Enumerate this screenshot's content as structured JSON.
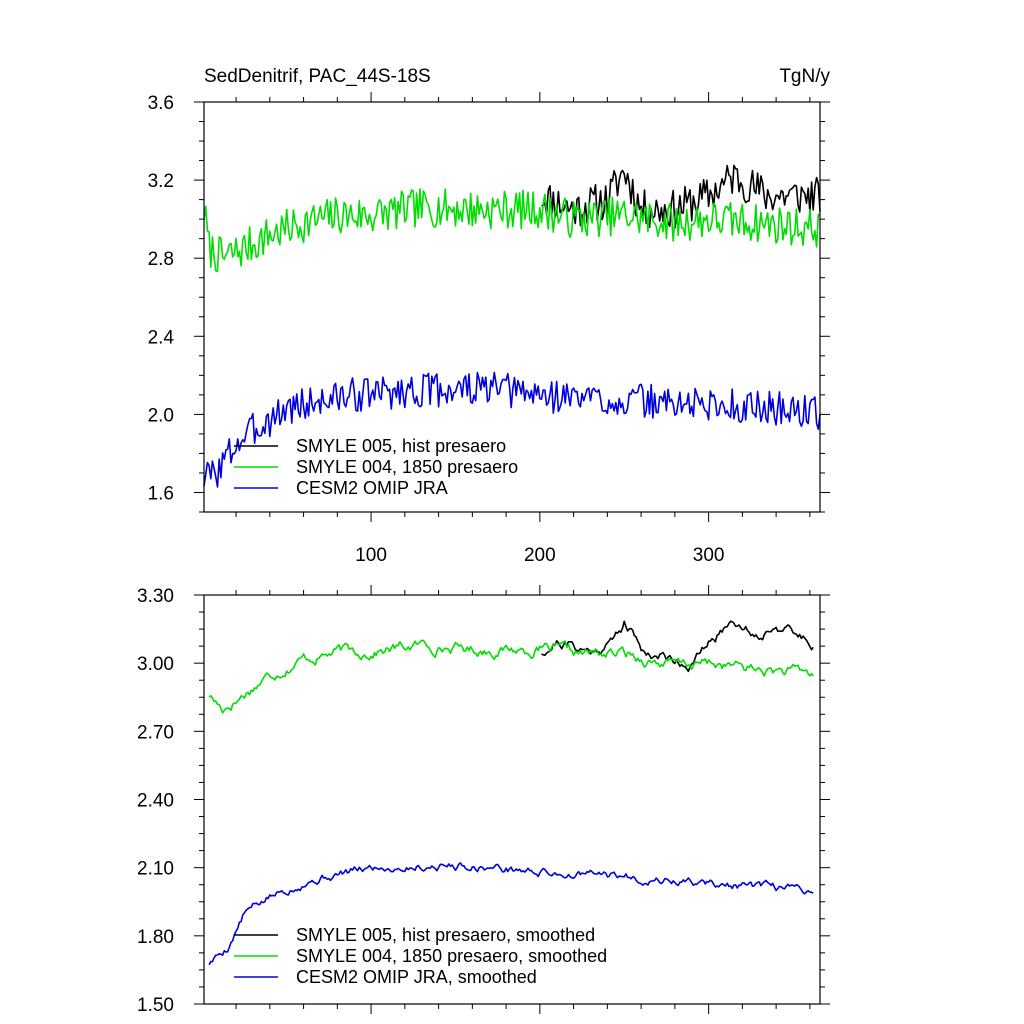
{
  "chart_data": [
    {
      "type": "line",
      "title": "SedDenitrif, PAC_44S-18S",
      "units": "TgN/y",
      "xlim": [
        1,
        366
      ],
      "ylim": [
        1.5,
        3.6
      ],
      "x_ticks": [
        100,
        200,
        300
      ],
      "x_tick_labels": [
        "100",
        "200",
        "300"
      ],
      "y_ticks": [
        1.6,
        2.0,
        2.4,
        2.8,
        3.2,
        3.6
      ],
      "y_tick_labels": [
        "1.6",
        "2.0",
        "2.4",
        "2.8",
        "3.2",
        "3.6"
      ],
      "legend": {
        "position": "bottom-left"
      },
      "series": [
        {
          "name": "SMYLE 005, hist presaero",
          "color": "#000000",
          "x_start": 201,
          "x_end": 366,
          "noise": 0.1,
          "seed": 11,
          "anchors": [
            [
              201,
              3.12
            ],
            [
              220,
              3.05
            ],
            [
              240,
              3.1
            ],
            [
              250,
              3.25
            ],
            [
              260,
              3.05
            ],
            [
              280,
              3.05
            ],
            [
              300,
              3.12
            ],
            [
              315,
              3.22
            ],
            [
              335,
              3.12
            ],
            [
              366,
              3.12
            ]
          ]
        },
        {
          "name": "SMYLE 004, 1850 presaero",
          "color": "#00dd00",
          "x_start": 1,
          "x_end": 366,
          "noise": 0.1,
          "seed": 7,
          "anchors": [
            [
              1,
              3.05
            ],
            [
              4,
              2.85
            ],
            [
              12,
              2.8
            ],
            [
              25,
              2.85
            ],
            [
              40,
              2.92
            ],
            [
              60,
              2.98
            ],
            [
              80,
              3.02
            ],
            [
              100,
              3.02
            ],
            [
              130,
              3.06
            ],
            [
              160,
              3.05
            ],
            [
              200,
              3.05
            ],
            [
              220,
              3.0
            ],
            [
              250,
              3.02
            ],
            [
              280,
              2.98
            ],
            [
              300,
              3.0
            ],
            [
              330,
              2.98
            ],
            [
              366,
              2.95
            ]
          ]
        },
        {
          "name": "CESM2 OMIP JRA",
          "color": "#0000dd",
          "x_start": 1,
          "x_end": 366,
          "noise": 0.09,
          "seed": 3,
          "anchors": [
            [
              1,
              1.68
            ],
            [
              8,
              1.7
            ],
            [
              20,
              1.85
            ],
            [
              35,
              1.95
            ],
            [
              50,
              2.03
            ],
            [
              70,
              2.07
            ],
            [
              90,
              2.1
            ],
            [
              120,
              2.12
            ],
            [
              150,
              2.13
            ],
            [
              170,
              2.13
            ],
            [
              200,
              2.1
            ],
            [
              250,
              2.07
            ],
            [
              300,
              2.05
            ],
            [
              340,
              2.03
            ],
            [
              366,
              2.01
            ]
          ]
        }
      ]
    },
    {
      "type": "line",
      "xlim": [
        1,
        366
      ],
      "ylim": [
        1.5,
        3.3
      ],
      "x_ticks": [
        100,
        200,
        300
      ],
      "y_ticks": [
        1.5,
        1.8,
        2.1,
        2.4,
        2.7,
        3.0,
        3.3
      ],
      "y_tick_labels": [
        "1.50",
        "1.80",
        "2.10",
        "2.40",
        "2.70",
        "3.00",
        "3.30"
      ],
      "legend": {
        "position": "bottom-left"
      },
      "series": [
        {
          "name": "SMYLE 005, hist presaero, smoothed",
          "color": "#000000",
          "x_start": 201,
          "x_end": 362,
          "noise": 0.04,
          "seed": 21,
          "anchors": [
            [
              201,
              3.05
            ],
            [
              210,
              3.1
            ],
            [
              230,
              3.05
            ],
            [
              243,
              3.1
            ],
            [
              250,
              3.18
            ],
            [
              262,
              3.05
            ],
            [
              280,
              3.02
            ],
            [
              290,
              3.0
            ],
            [
              300,
              3.08
            ],
            [
              315,
              3.2
            ],
            [
              330,
              3.12
            ],
            [
              340,
              3.18
            ],
            [
              350,
              3.12
            ],
            [
              362,
              3.1
            ]
          ]
        },
        {
          "name": "SMYLE 004, 1850 presaero, smoothed",
          "color": "#00dd00",
          "x_start": 4,
          "x_end": 362,
          "noise": 0.04,
          "seed": 17,
          "anchors": [
            [
              4,
              2.86
            ],
            [
              12,
              2.8
            ],
            [
              22,
              2.85
            ],
            [
              40,
              2.95
            ],
            [
              60,
              3.02
            ],
            [
              80,
              3.05
            ],
            [
              100,
              3.05
            ],
            [
              130,
              3.08
            ],
            [
              160,
              3.06
            ],
            [
              200,
              3.06
            ],
            [
              220,
              3.04
            ],
            [
              250,
              3.04
            ],
            [
              280,
              2.99
            ],
            [
              300,
              3.0
            ],
            [
              330,
              2.97
            ],
            [
              362,
              2.95
            ]
          ]
        },
        {
          "name": "CESM2 OMIP JRA, smoothed",
          "color": "#0000dd",
          "x_start": 4,
          "x_end": 362,
          "noise": 0.03,
          "seed": 5,
          "anchors": [
            [
              4,
              1.68
            ],
            [
              15,
              1.75
            ],
            [
              25,
              1.9
            ],
            [
              40,
              1.97
            ],
            [
              60,
              2.04
            ],
            [
              80,
              2.07
            ],
            [
              100,
              2.1
            ],
            [
              130,
              2.11
            ],
            [
              160,
              2.11
            ],
            [
              200,
              2.08
            ],
            [
              250,
              2.06
            ],
            [
              300,
              2.03
            ],
            [
              330,
              2.01
            ],
            [
              362,
              2.0
            ]
          ]
        }
      ]
    }
  ]
}
